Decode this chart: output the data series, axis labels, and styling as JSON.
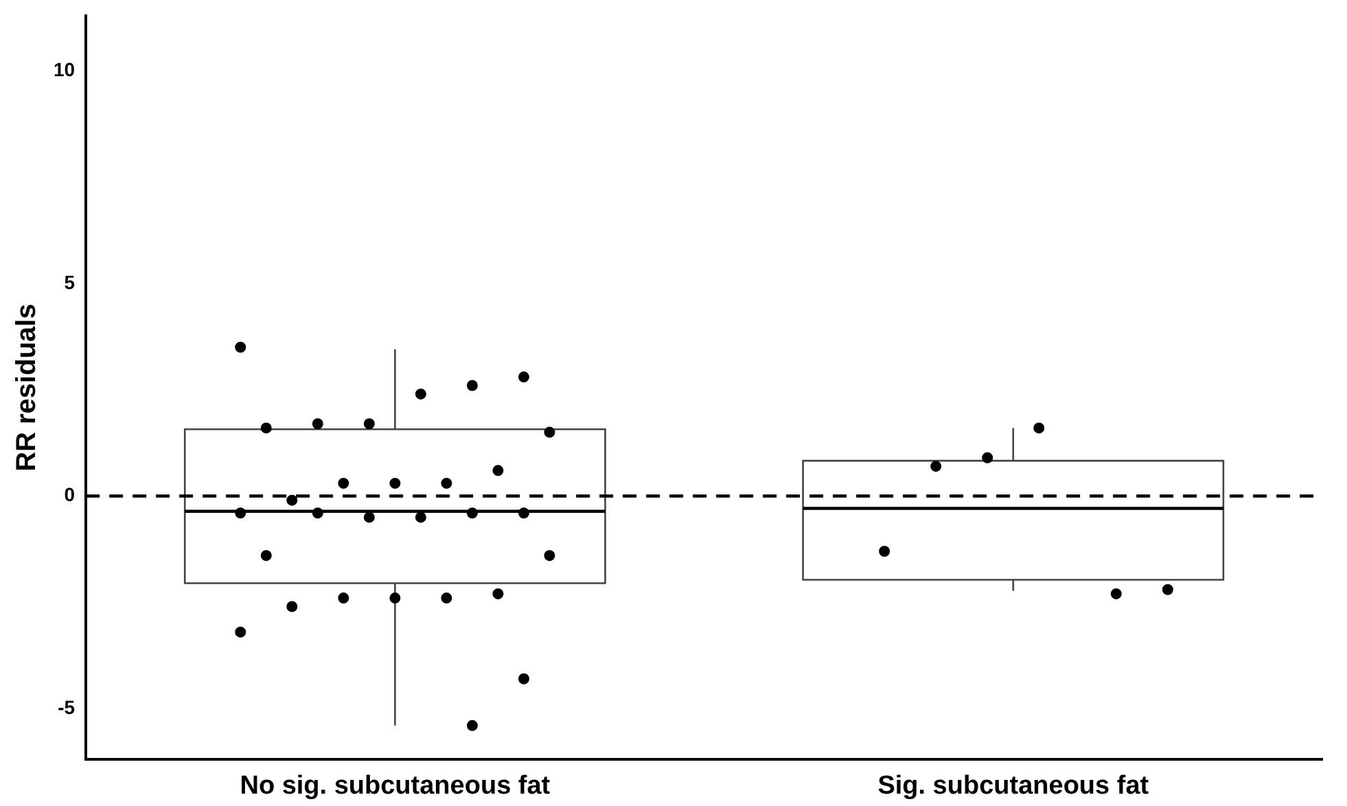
{
  "chart_data": {
    "type": "box",
    "ylabel": "RR residuals",
    "categories": [
      "No sig. subcutaneous fat",
      "Sig. subcutaneous fat"
    ],
    "boxes": [
      {
        "low": -5.4,
        "q1": -2.05,
        "median": -0.36,
        "q3": 1.57,
        "high": 3.45
      },
      {
        "low": -2.23,
        "q1": -1.97,
        "median": -0.29,
        "q3": 0.83,
        "high": 1.6
      }
    ],
    "series": [
      {
        "type": "scatter",
        "color": "#000000",
        "x": [
          "No sig. subcutaneous fat",
          "No sig. subcutaneous fat",
          "No sig. subcutaneous fat",
          "No sig. subcutaneous fat",
          "No sig. subcutaneous fat",
          "No sig. subcutaneous fat",
          "No sig. subcutaneous fat",
          "No sig. subcutaneous fat",
          "No sig. subcutaneous fat",
          "No sig. subcutaneous fat",
          "No sig. subcutaneous fat",
          "No sig. subcutaneous fat",
          "No sig. subcutaneous fat",
          "No sig. subcutaneous fat",
          "No sig. subcutaneous fat",
          "No sig. subcutaneous fat",
          "No sig. subcutaneous fat",
          "No sig. subcutaneous fat",
          "No sig. subcutaneous fat",
          "No sig. subcutaneous fat",
          "No sig. subcutaneous fat",
          "No sig. subcutaneous fat",
          "No sig. subcutaneous fat",
          "No sig. subcutaneous fat",
          "No sig. subcutaneous fat",
          "No sig. subcutaneous fat",
          "No sig. subcutaneous fat",
          "No sig. subcutaneous fat",
          "No sig. subcutaneous fat",
          "Sig. subcutaneous fat",
          "Sig. subcutaneous fat",
          "Sig. subcutaneous fat",
          "Sig. subcutaneous fat",
          "Sig. subcutaneous fat",
          "Sig. subcutaneous fat"
        ],
        "values": [
          3.5,
          2.8,
          2.6,
          2.4,
          1.7,
          1.7,
          1.6,
          1.5,
          0.6,
          0.3,
          0.3,
          0.3,
          -0.1,
          -0.4,
          -0.4,
          -0.4,
          -0.5,
          -0.5,
          -0.4,
          -1.4,
          -1.4,
          -2.3,
          -2.4,
          -2.4,
          -2.4,
          -2.6,
          -3.2,
          -4.3,
          -5.4,
          1.6,
          0.9,
          0.7,
          -1.3,
          -2.2,
          -2.3
        ]
      }
    ],
    "ylim": [
      -6.2,
      11.3
    ],
    "yticks": [
      -5,
      0,
      5,
      10
    ],
    "ref_lines": [
      {
        "axis": "y",
        "value": 0,
        "color": "#000000",
        "line_style": "dashed"
      }
    ],
    "marker": "circle",
    "grid": false,
    "legend": false
  }
}
